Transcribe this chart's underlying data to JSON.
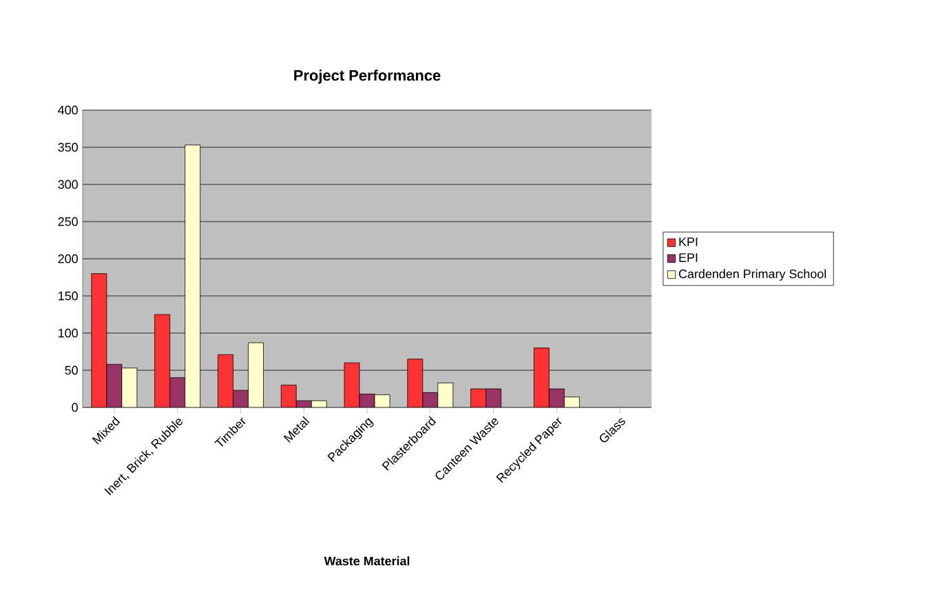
{
  "chart_data": {
    "type": "bar",
    "title": "Project Performance",
    "xlabel": "Waste Material",
    "categories": [
      "Mixed",
      "Inert, Brick, Rubble",
      "Timber",
      "Metal",
      "Packaging",
      "Plasterboard",
      "Canteen Waste",
      "Recycled Paper",
      "Glass"
    ],
    "series": [
      {
        "name": "KPI",
        "color": "#ff3333",
        "values": [
          180,
          125,
          71,
          30,
          60,
          65,
          25,
          80,
          null
        ]
      },
      {
        "name": "EPI",
        "color": "#993366",
        "values": [
          58,
          40,
          23,
          9,
          18,
          20,
          25,
          25,
          null
        ]
      },
      {
        "name": "Cardenden Primary School",
        "color": "#ffffcc",
        "values": [
          53,
          353,
          87,
          9,
          17,
          33,
          null,
          14,
          null
        ]
      }
    ],
    "ylim": [
      0,
      400
    ],
    "yticks": [
      0,
      50,
      100,
      150,
      200,
      250,
      300,
      350,
      400
    ],
    "grid": "y",
    "legend": "right"
  }
}
